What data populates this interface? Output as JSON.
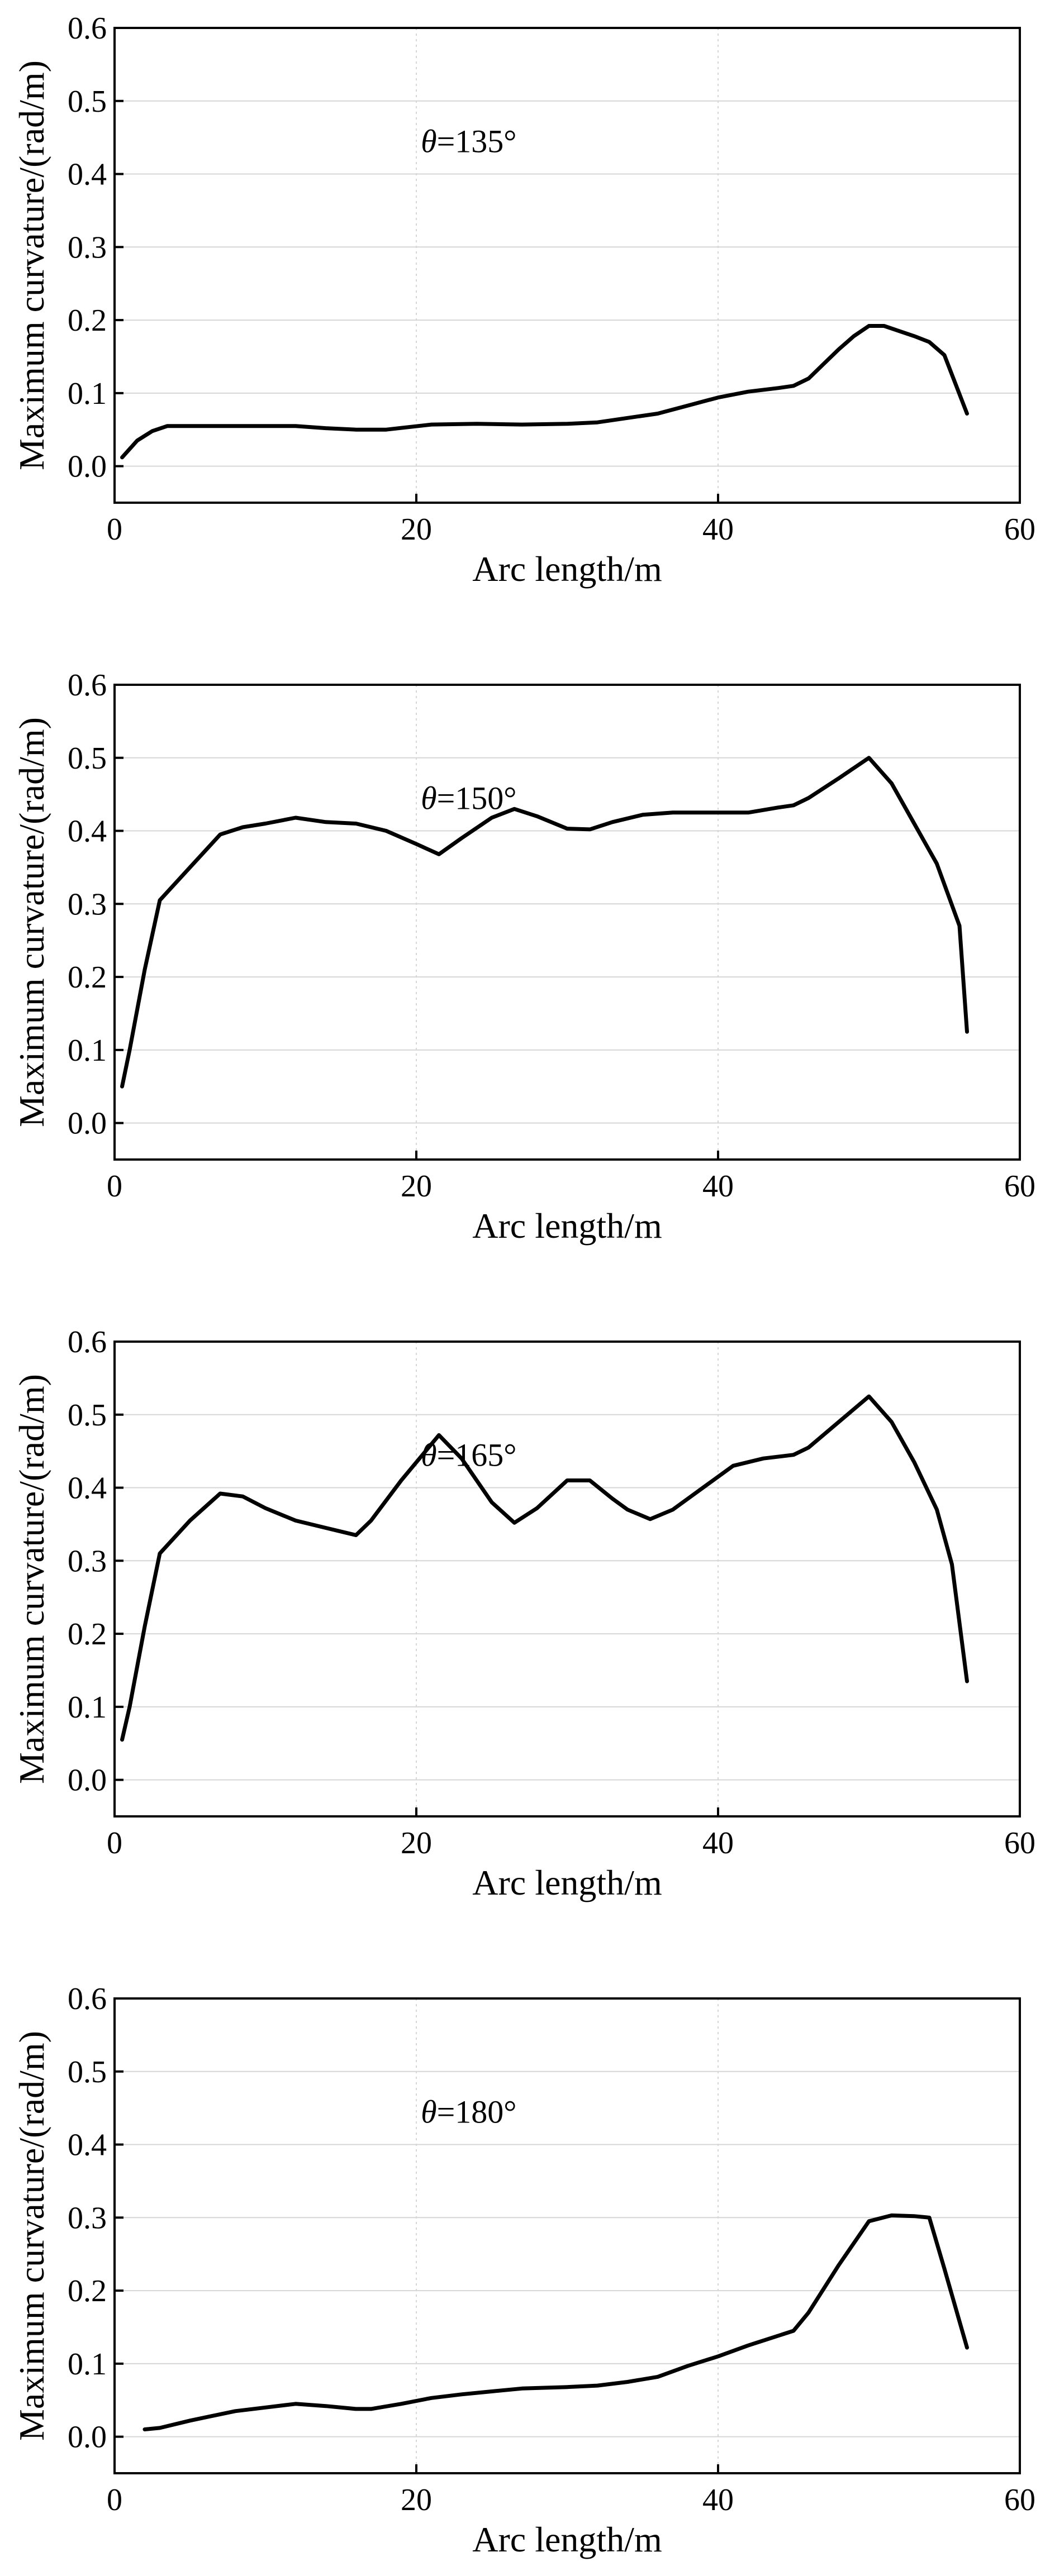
{
  "chart_data": [
    {
      "type": "line",
      "title": "",
      "annotation": {
        "symbol": "θ",
        "text": "=135°"
      },
      "xlabel": "Arc length/m",
      "ylabel": "Maximum curvature/(rad/m)",
      "xlim": [
        0,
        60
      ],
      "ylim": [
        -0.05,
        0.6
      ],
      "xticks": [
        0,
        20,
        40,
        60
      ],
      "yticks": [
        0.0,
        0.1,
        0.2,
        0.3,
        0.4,
        0.5,
        0.6
      ],
      "ytick_labels": [
        "0.0",
        "0.1",
        "0.2",
        "0.3",
        "0.4",
        "0.5",
        "0.6"
      ],
      "grid": true,
      "series": [
        {
          "x": [
            0.5,
            1.5,
            2.5,
            3.5,
            5,
            7,
            9,
            12,
            14,
            16,
            18,
            21,
            24,
            27,
            30,
            32,
            34,
            36,
            38,
            40,
            42,
            44,
            45,
            46,
            47,
            48,
            49,
            50,
            51,
            52,
            53,
            54,
            55,
            56.5
          ],
          "y": [
            0.012,
            0.035,
            0.048,
            0.055,
            0.055,
            0.055,
            0.055,
            0.055,
            0.052,
            0.05,
            0.05,
            0.057,
            0.058,
            0.057,
            0.058,
            0.06,
            0.066,
            0.072,
            0.083,
            0.094,
            0.102,
            0.107,
            0.11,
            0.12,
            0.14,
            0.16,
            0.178,
            0.192,
            0.192,
            0.185,
            0.178,
            0.17,
            0.152,
            0.072
          ]
        }
      ]
    },
    {
      "type": "line",
      "title": "",
      "annotation": {
        "symbol": "θ",
        "text": "=150°"
      },
      "xlabel": "Arc length/m",
      "ylabel": "Maximum curvature/(rad/m)",
      "xlim": [
        0,
        60
      ],
      "ylim": [
        -0.05,
        0.6
      ],
      "xticks": [
        0,
        20,
        40,
        60
      ],
      "yticks": [
        0.0,
        0.1,
        0.2,
        0.3,
        0.4,
        0.5,
        0.6
      ],
      "ytick_labels": [
        "0.0",
        "0.1",
        "0.2",
        "0.3",
        "0.4",
        "0.5",
        "0.6"
      ],
      "grid": true,
      "series": [
        {
          "x": [
            0.5,
            1,
            2,
            3,
            5,
            7,
            8.5,
            10,
            12,
            14,
            16,
            18,
            20,
            21.5,
            23,
            25,
            26.5,
            28,
            30,
            31.5,
            33,
            35,
            37,
            40,
            42,
            44,
            45,
            46,
            48,
            50,
            51.5,
            53,
            54.5,
            56,
            56.5
          ],
          "y": [
            0.05,
            0.1,
            0.21,
            0.305,
            0.35,
            0.395,
            0.405,
            0.41,
            0.418,
            0.412,
            0.41,
            0.4,
            0.382,
            0.368,
            0.39,
            0.418,
            0.43,
            0.42,
            0.403,
            0.402,
            0.412,
            0.422,
            0.425,
            0.425,
            0.425,
            0.432,
            0.435,
            0.445,
            0.472,
            0.5,
            0.465,
            0.41,
            0.355,
            0.27,
            0.125
          ]
        }
      ]
    },
    {
      "type": "line",
      "title": "",
      "annotation": {
        "symbol": "θ",
        "text": "=165°"
      },
      "xlabel": "Arc length/m",
      "ylabel": "Maximum curvature/(rad/m)",
      "xlim": [
        0,
        60
      ],
      "ylim": [
        -0.05,
        0.6
      ],
      "xticks": [
        0,
        20,
        40,
        60
      ],
      "yticks": [
        0.0,
        0.1,
        0.2,
        0.3,
        0.4,
        0.5,
        0.6
      ],
      "ytick_labels": [
        "0.0",
        "0.1",
        "0.2",
        "0.3",
        "0.4",
        "0.5",
        "0.6"
      ],
      "grid": true,
      "series": [
        {
          "x": [
            0.5,
            1,
            2,
            3,
            5,
            7,
            8.5,
            10,
            12,
            14,
            16,
            17,
            19,
            21.5,
            23,
            25,
            26.5,
            28,
            30,
            31.5,
            33,
            34,
            35.5,
            37,
            39,
            41,
            43,
            45,
            46,
            48,
            50,
            51.5,
            53,
            54.5,
            55.5,
            56.5
          ],
          "y": [
            0.055,
            0.1,
            0.21,
            0.31,
            0.355,
            0.392,
            0.388,
            0.372,
            0.355,
            0.345,
            0.335,
            0.355,
            0.41,
            0.472,
            0.44,
            0.38,
            0.352,
            0.372,
            0.41,
            0.41,
            0.385,
            0.37,
            0.357,
            0.37,
            0.4,
            0.43,
            0.44,
            0.445,
            0.455,
            0.49,
            0.525,
            0.49,
            0.435,
            0.37,
            0.295,
            0.135
          ]
        }
      ]
    },
    {
      "type": "line",
      "title": "",
      "annotation": {
        "symbol": "θ",
        "text": "=180°"
      },
      "xlabel": "Arc length/m",
      "ylabel": "Maximum curvature/(rad/m)",
      "xlim": [
        0,
        60
      ],
      "ylim": [
        -0.05,
        0.6
      ],
      "xticks": [
        0,
        20,
        40,
        60
      ],
      "yticks": [
        0.0,
        0.1,
        0.2,
        0.3,
        0.4,
        0.5,
        0.6
      ],
      "ytick_labels": [
        "0.0",
        "0.1",
        "0.2",
        "0.3",
        "0.4",
        "0.5",
        "0.6"
      ],
      "grid": true,
      "series": [
        {
          "x": [
            2,
            3,
            5,
            8,
            10,
            12,
            14,
            16,
            17,
            19,
            21,
            23,
            25,
            27,
            30,
            32,
            34,
            36,
            38,
            40,
            42,
            45,
            46,
            48,
            50,
            51.5,
            53,
            54,
            55,
            56.5
          ],
          "y": [
            0.01,
            0.012,
            0.022,
            0.035,
            0.04,
            0.045,
            0.042,
            0.038,
            0.038,
            0.045,
            0.053,
            0.058,
            0.062,
            0.066,
            0.068,
            0.07,
            0.075,
            0.082,
            0.097,
            0.11,
            0.125,
            0.145,
            0.17,
            0.235,
            0.295,
            0.303,
            0.302,
            0.3,
            0.23,
            0.122
          ]
        }
      ]
    }
  ]
}
